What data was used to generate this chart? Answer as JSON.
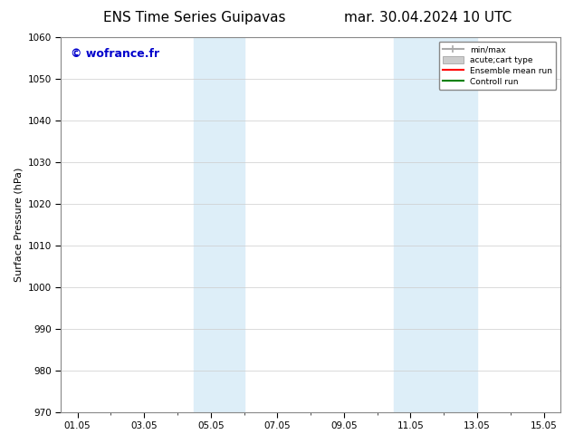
{
  "title_left": "ENS Time Series Guipavas",
  "title_right": "mar. 30.04.2024 10 UTC",
  "ylabel": "Surface Pressure (hPa)",
  "ylim": [
    970,
    1060
  ],
  "yticks": [
    970,
    980,
    990,
    1000,
    1010,
    1020,
    1030,
    1040,
    1050,
    1060
  ],
  "xlim": [
    0.5,
    15.5
  ],
  "xtick_positions": [
    1,
    3,
    5,
    7,
    9,
    11,
    13,
    15
  ],
  "xtick_labels": [
    "01.05",
    "03.05",
    "05.05",
    "07.05",
    "09.05",
    "11.05",
    "13.05",
    "15.05"
  ],
  "shaded_regions": [
    {
      "x_start": 4.5,
      "x_end": 6.0,
      "color": "#ddeef8"
    },
    {
      "x_start": 10.5,
      "x_end": 13.0,
      "color": "#ddeef8"
    }
  ],
  "bg_color": "#ffffff",
  "plot_bg_color": "#ffffff",
  "watermark": "© wofrance.fr",
  "watermark_color": "#0000cc",
  "watermark_fontsize": 9,
  "legend_items": [
    {
      "label": "min/max",
      "color": "#aaaaaa",
      "lw": 1.5
    },
    {
      "label": "acute;cart type",
      "color": "#cccccc",
      "lw": 6
    },
    {
      "label": "Ensemble mean run",
      "color": "#ff0000",
      "lw": 1.5
    },
    {
      "label": "Controll run",
      "color": "#008000",
      "lw": 1.5
    }
  ],
  "title_fontsize": 11,
  "axis_fontsize": 8,
  "grid_color": "#cccccc",
  "tick_fontsize": 7.5
}
